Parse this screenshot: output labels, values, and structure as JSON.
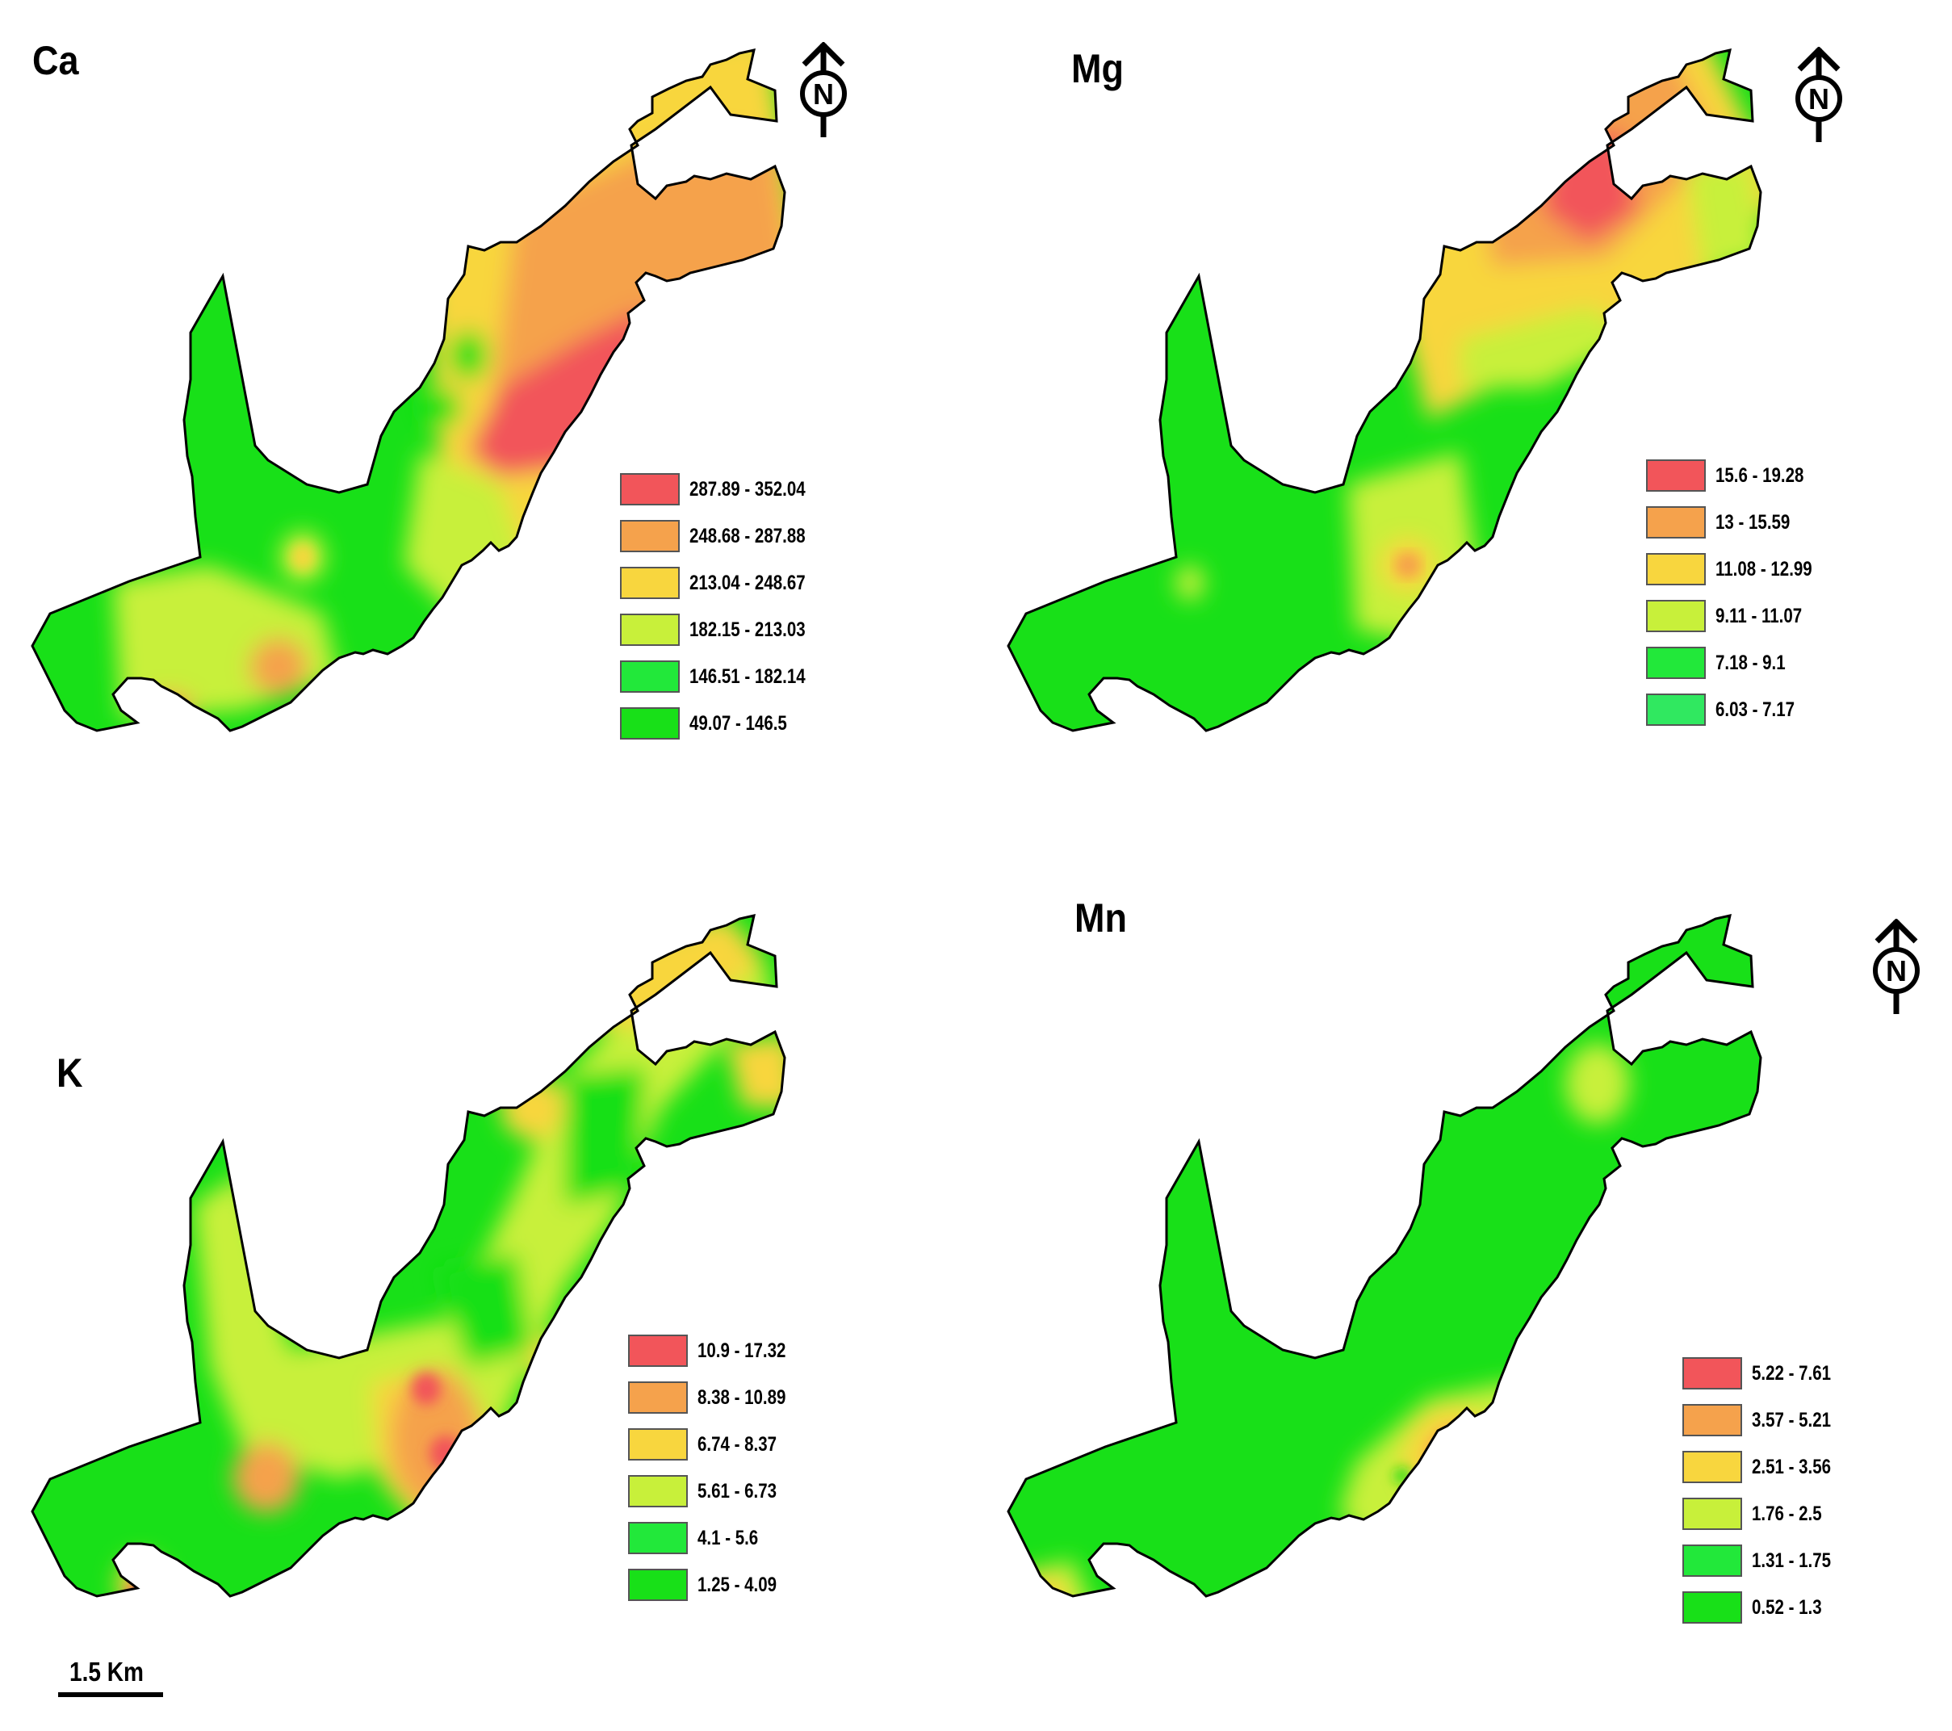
{
  "panels": [
    {
      "id": "ca",
      "title": "Ca",
      "legend": [
        {
          "label": "287.89 - 352.04",
          "color": "#f2555a"
        },
        {
          "label": "248.68 - 287.88",
          "color": "#f5a24c"
        },
        {
          "label": "213.04 - 248.67",
          "color": "#f8d63e"
        },
        {
          "label": "182.15 - 213.03",
          "color": "#c8f03a"
        },
        {
          "label": "146.51 - 182.14",
          "color": "#22e83a"
        },
        {
          "label": "49.07 - 146.5",
          "color": "#18e018"
        }
      ]
    },
    {
      "id": "mg",
      "title": "Mg",
      "legend": [
        {
          "label": "15.6 - 19.28",
          "color": "#f2555a"
        },
        {
          "label": "13 - 15.59",
          "color": "#f5a24c"
        },
        {
          "label": "11.08 - 12.99",
          "color": "#f8d63e"
        },
        {
          "label": "9.11 - 11.07",
          "color": "#c8f03a"
        },
        {
          "label": "7.18 - 9.1",
          "color": "#22e83a"
        },
        {
          "label": "6.03 - 7.17",
          "color": "#30e860"
        }
      ]
    },
    {
      "id": "k",
      "title": "K",
      "legend": [
        {
          "label": "10.9 - 17.32",
          "color": "#f2555a"
        },
        {
          "label": "8.38 - 10.89",
          "color": "#f5a24c"
        },
        {
          "label": "6.74 - 8.37",
          "color": "#f8d63e"
        },
        {
          "label": "5.61 - 6.73",
          "color": "#c8f03a"
        },
        {
          "label": "4.1 - 5.6",
          "color": "#22e83a"
        },
        {
          "label": "1.25 - 4.09",
          "color": "#18e018"
        }
      ]
    },
    {
      "id": "mn",
      "title": "Mn",
      "legend": [
        {
          "label": "5.22 - 7.61",
          "color": "#f2555a"
        },
        {
          "label": "3.57 - 5.21",
          "color": "#f5a24c"
        },
        {
          "label": "2.51 - 3.56",
          "color": "#f8d63e"
        },
        {
          "label": "1.76 - 2.5",
          "color": "#c8f03a"
        },
        {
          "label": "1.31 - 1.75",
          "color": "#22e83a"
        },
        {
          "label": "0.52 - 1.3",
          "color": "#18e018"
        }
      ]
    }
  ],
  "north_arrow": {
    "letter": "N"
  },
  "scale_bar": {
    "label": "1.5 Km"
  }
}
